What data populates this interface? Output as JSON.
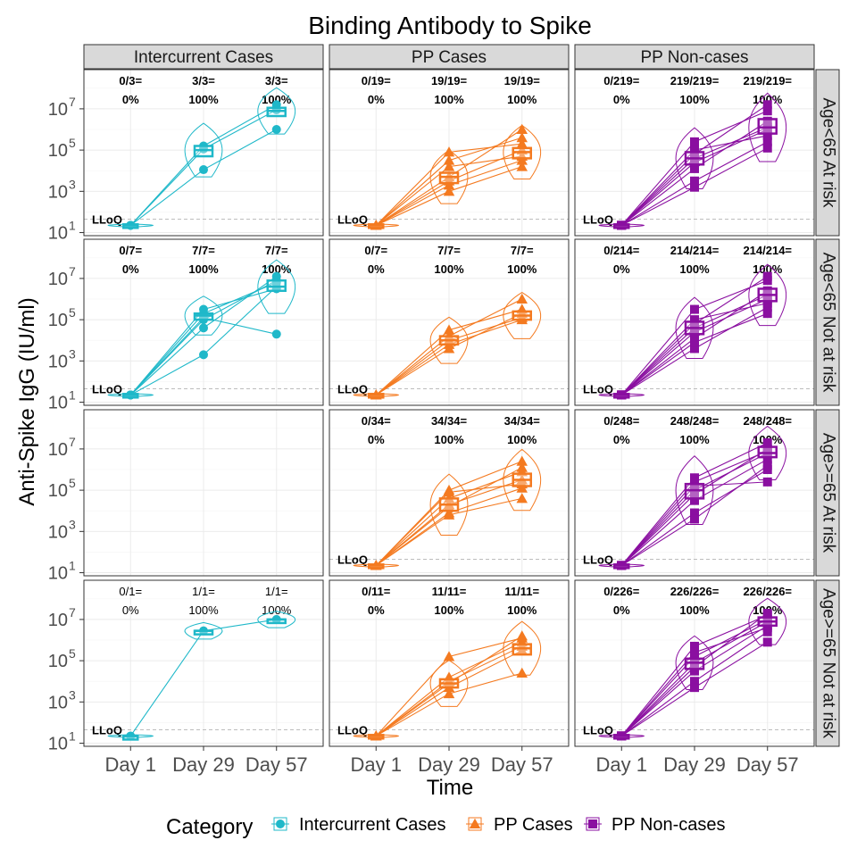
{
  "chart_data": {
    "type": "line",
    "title": "Binding Antibody to Spike",
    "xlabel": "Time",
    "ylabel": "Anti-Spike IgG (IU/ml)",
    "x_categories": [
      "Day 1",
      "Day 29",
      "Day 57"
    ],
    "y_scale": "log10",
    "y_range_log10": [
      0.85,
      8.9
    ],
    "y_ticks": [
      {
        "log": 1,
        "label": "10",
        "exp": "1"
      },
      {
        "log": 3,
        "label": "10",
        "exp": "3"
      },
      {
        "log": 5,
        "label": "10",
        "exp": "5"
      },
      {
        "log": 7,
        "label": "10",
        "exp": "7"
      }
    ],
    "lloq_label": "LLoQ",
    "lloq_log10": 1.65,
    "grid": true,
    "column_strips": [
      "Intercurrent Cases",
      "PP Cases",
      "PP Non-cases"
    ],
    "row_strips": [
      "Age<65 At risk",
      "Age<65 Not at risk",
      "Age>=65 At risk",
      "Age>=65 Not at risk"
    ],
    "legend": {
      "title": "Category",
      "position": "bottom",
      "entries": [
        {
          "label": "Intercurrent Cases",
          "shape": "circle",
          "color": "#1fb8c9"
        },
        {
          "label": "PP Cases",
          "shape": "triangle",
          "color": "#f47a20"
        },
        {
          "label": "PP Non-cases",
          "shape": "square",
          "color": "#8a0fa0"
        }
      ]
    },
    "panels": [
      {
        "row": 0,
        "col": 0,
        "counts": [
          "0/3=",
          "3/3=",
          "3/3="
        ],
        "pcts": [
          "0%",
          "100%",
          "100%"
        ],
        "median_log10": [
          1.35,
          5.0,
          6.9
        ],
        "q1_log10": [
          1.3,
          4.7,
          6.65
        ],
        "q3_log10": [
          1.4,
          5.2,
          7.05
        ],
        "subjects_log10": [
          [
            1.35,
            5.2,
            7.2
          ],
          [
            1.35,
            4.05,
            6.0
          ],
          [
            1.35,
            5.05,
            6.95
          ]
        ]
      },
      {
        "row": 0,
        "col": 1,
        "counts": [
          "0/19=",
          "19/19=",
          "19/19="
        ],
        "pcts": [
          "0%",
          "100%",
          "100%"
        ],
        "median_log10": [
          1.35,
          3.7,
          4.9
        ],
        "q1_log10": [
          1.3,
          3.4,
          4.6
        ],
        "q3_log10": [
          1.4,
          3.9,
          5.1
        ],
        "subjects_log10": [
          [
            1.35,
            4.9,
            5.3
          ],
          [
            1.35,
            3.3,
            4.5
          ],
          [
            1.35,
            3.7,
            6.0
          ],
          [
            1.35,
            4.2,
            4.7
          ],
          [
            1.35,
            3.0,
            4.2
          ],
          [
            1.35,
            4.5,
            5.6
          ],
          [
            1.35,
            3.5,
            5.0
          ]
        ]
      },
      {
        "row": 0,
        "col": 2,
        "counts": [
          "0/219=",
          "219/219=",
          "219/219="
        ],
        "pcts": [
          "0%",
          "100%",
          "100%"
        ],
        "median_log10": [
          1.35,
          4.6,
          6.1
        ],
        "q1_log10": [
          1.3,
          4.3,
          5.8
        ],
        "q3_log10": [
          1.4,
          4.9,
          6.5
        ],
        "subjects_log10": [
          [
            1.35,
            4.6,
            6.1
          ],
          [
            1.35,
            3.5,
            5.4
          ],
          [
            1.35,
            5.4,
            6.9
          ],
          [
            1.35,
            4.1,
            6.4
          ],
          [
            1.35,
            5.0,
            5.7
          ],
          [
            1.35,
            3.2,
            5.1
          ],
          [
            1.35,
            4.8,
            7.2
          ],
          [
            1.35,
            4.4,
            6.0
          ]
        ]
      },
      {
        "row": 1,
        "col": 0,
        "counts": [
          "0/7=",
          "7/7=",
          "7/7="
        ],
        "pcts": [
          "0%",
          "100%",
          "100%"
        ],
        "median_log10": [
          1.35,
          5.2,
          6.6
        ],
        "q1_log10": [
          1.3,
          5.0,
          6.4
        ],
        "q3_log10": [
          1.4,
          5.3,
          6.9
        ],
        "subjects_log10": [
          [
            1.35,
            5.3,
            6.8
          ],
          [
            1.35,
            5.5,
            6.5
          ],
          [
            1.35,
            3.3,
            6.6
          ],
          [
            1.35,
            4.6,
            7.1
          ],
          [
            1.35,
            5.1,
            4.3
          ],
          [
            1.35,
            5.0,
            6.9
          ]
        ]
      },
      {
        "row": 1,
        "col": 1,
        "counts": [
          "0/7=",
          "7/7=",
          "7/7="
        ],
        "pcts": [
          "0%",
          "100%",
          "100%"
        ],
        "median_log10": [
          1.35,
          4.0,
          5.2
        ],
        "q1_log10": [
          1.3,
          3.8,
          5.0
        ],
        "q3_log10": [
          1.4,
          4.2,
          5.4
        ],
        "subjects_log10": [
          [
            1.35,
            4.5,
            5.5
          ],
          [
            1.35,
            4.0,
            5.1
          ],
          [
            1.35,
            3.6,
            5.3
          ],
          [
            1.35,
            4.2,
            6.0
          ],
          [
            1.35,
            3.8,
            5.0
          ]
        ]
      },
      {
        "row": 1,
        "col": 2,
        "counts": [
          "0/214=",
          "214/214=",
          "214/214="
        ],
        "pcts": [
          "0%",
          "100%",
          "100%"
        ],
        "median_log10": [
          1.35,
          4.6,
          6.2
        ],
        "q1_log10": [
          1.3,
          4.3,
          5.9
        ],
        "q3_log10": [
          1.4,
          4.9,
          6.5
        ],
        "subjects_log10": [
          [
            1.35,
            4.6,
            6.2
          ],
          [
            1.35,
            3.6,
            5.6
          ],
          [
            1.35,
            5.5,
            6.9
          ],
          [
            1.35,
            4.1,
            6.4
          ],
          [
            1.35,
            5.0,
            5.8
          ],
          [
            1.35,
            3.9,
            5.3
          ],
          [
            1.35,
            4.8,
            7.1
          ],
          [
            1.35,
            4.4,
            6.0
          ]
        ]
      },
      {
        "row": 2,
        "col": 0,
        "counts": [
          "",
          "",
          ""
        ],
        "pcts": [
          "",
          "",
          ""
        ],
        "show_lloq": false,
        "median_log10": [],
        "q1_log10": [],
        "q3_log10": [],
        "subjects_log10": []
      },
      {
        "row": 2,
        "col": 1,
        "counts": [
          "0/34=",
          "34/34=",
          "34/34="
        ],
        "pcts": [
          "0%",
          "100%",
          "100%"
        ],
        "median_log10": [
          1.35,
          4.3,
          5.5
        ],
        "q1_log10": [
          1.3,
          4.0,
          5.2
        ],
        "q3_log10": [
          1.4,
          4.6,
          5.8
        ],
        "subjects_log10": [
          [
            1.35,
            4.3,
            5.5
          ],
          [
            1.35,
            3.8,
            4.6
          ],
          [
            1.35,
            5.0,
            6.4
          ],
          [
            1.35,
            4.6,
            5.9
          ],
          [
            1.35,
            3.9,
            5.1
          ],
          [
            1.35,
            4.2,
            6.1
          ],
          [
            1.35,
            4.9,
            5.3
          ]
        ]
      },
      {
        "row": 2,
        "col": 2,
        "counts": [
          "0/248=",
          "248/248=",
          "248/248="
        ],
        "pcts": [
          "0%",
          "100%",
          "100%"
        ],
        "median_log10": [
          1.35,
          5.0,
          6.8
        ],
        "q1_log10": [
          1.3,
          4.6,
          6.6
        ],
        "q3_log10": [
          1.4,
          5.3,
          7.1
        ],
        "subjects_log10": [
          [
            1.35,
            5.0,
            6.8
          ],
          [
            1.35,
            3.9,
            6.0
          ],
          [
            1.35,
            5.6,
            7.3
          ],
          [
            1.35,
            4.5,
            6.5
          ],
          [
            1.35,
            5.2,
            5.4
          ],
          [
            1.35,
            3.6,
            6.2
          ],
          [
            1.35,
            4.8,
            7.0
          ],
          [
            1.35,
            5.4,
            6.9
          ]
        ]
      },
      {
        "row": 3,
        "col": 0,
        "counts": [
          "0/1=",
          "1/1=",
          "1/1="
        ],
        "pcts": [
          "0%",
          "100%",
          "100%"
        ],
        "plain_text": true,
        "median_log10": [
          1.35,
          6.45,
          7.0
        ],
        "q1_log10": [
          1.35,
          6.45,
          7.0
        ],
        "q3_log10": [
          1.35,
          6.45,
          7.0
        ],
        "subjects_log10": [
          [
            1.35,
            6.45,
            7.0
          ]
        ]
      },
      {
        "row": 3,
        "col": 1,
        "counts": [
          "0/11=",
          "11/11=",
          "11/11="
        ],
        "pcts": [
          "0%",
          "100%",
          "100%"
        ],
        "median_log10": [
          1.35,
          3.9,
          5.6
        ],
        "q1_log10": [
          1.3,
          3.7,
          5.3
        ],
        "q3_log10": [
          1.4,
          4.1,
          5.8
        ],
        "subjects_log10": [
          [
            1.35,
            4.2,
            5.9
          ],
          [
            1.35,
            3.7,
            5.5
          ],
          [
            1.35,
            5.2,
            6.1
          ],
          [
            1.35,
            3.4,
            4.4
          ],
          [
            1.35,
            4.0,
            5.7
          ],
          [
            1.35,
            3.9,
            6.2
          ]
        ]
      },
      {
        "row": 3,
        "col": 2,
        "counts": [
          "0/226=",
          "226/226=",
          "226/226="
        ],
        "pcts": [
          "0%",
          "100%",
          "100%"
        ],
        "median_log10": [
          1.35,
          4.9,
          6.9
        ],
        "q1_log10": [
          1.3,
          4.6,
          6.7
        ],
        "q3_log10": [
          1.4,
          5.1,
          7.1
        ],
        "subjects_log10": [
          [
            1.35,
            4.9,
            6.9
          ],
          [
            1.35,
            4.0,
            6.4
          ],
          [
            1.35,
            5.7,
            7.2
          ],
          [
            1.35,
            4.5,
            6.7
          ],
          [
            1.35,
            5.2,
            7.0
          ],
          [
            1.35,
            3.7,
            5.9
          ],
          [
            1.35,
            4.7,
            7.3
          ],
          [
            1.35,
            5.4,
            6.6
          ]
        ]
      }
    ]
  }
}
